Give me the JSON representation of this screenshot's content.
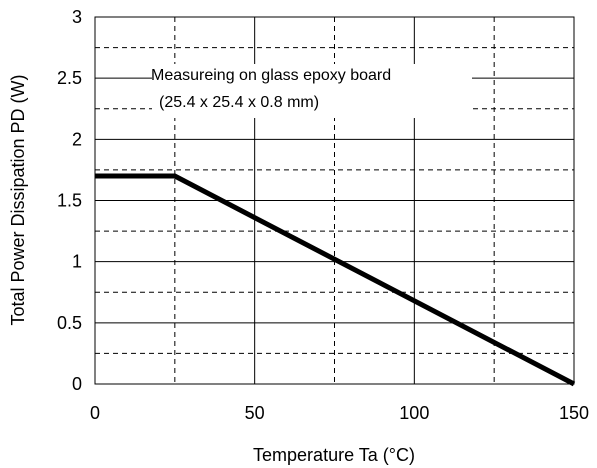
{
  "chart_data": {
    "type": "line",
    "xlabel": "Temperature Ta (°C)",
    "ylabel": "Total Power Dissipation PD (W)",
    "xlim": [
      0,
      150
    ],
    "ylim": [
      0,
      3
    ],
    "x_ticks": [
      0,
      50,
      100,
      150
    ],
    "x_tick_labels": [
      "0",
      "50",
      "100",
      "150"
    ],
    "y_ticks": [
      0,
      0.5,
      1,
      1.5,
      2,
      2.5,
      3
    ],
    "y_tick_labels": [
      "0",
      "0.5",
      "1",
      "1.5",
      "2",
      "2.5",
      "3"
    ],
    "x_minor_gridlines": [
      25,
      75,
      125
    ],
    "y_minor_gridlines": [
      0.25,
      0.75,
      1.25,
      1.75,
      2.25,
      2.75
    ],
    "grid": true,
    "annotation": {
      "line1": "Measureing on glass epoxy board",
      "line2": "(25.4 x 25.4 x 0.8 mm)"
    },
    "series": [
      {
        "x": [
          0,
          25,
          150
        ],
        "y": [
          1.7,
          1.7,
          0
        ],
        "color": "#000000"
      }
    ]
  }
}
